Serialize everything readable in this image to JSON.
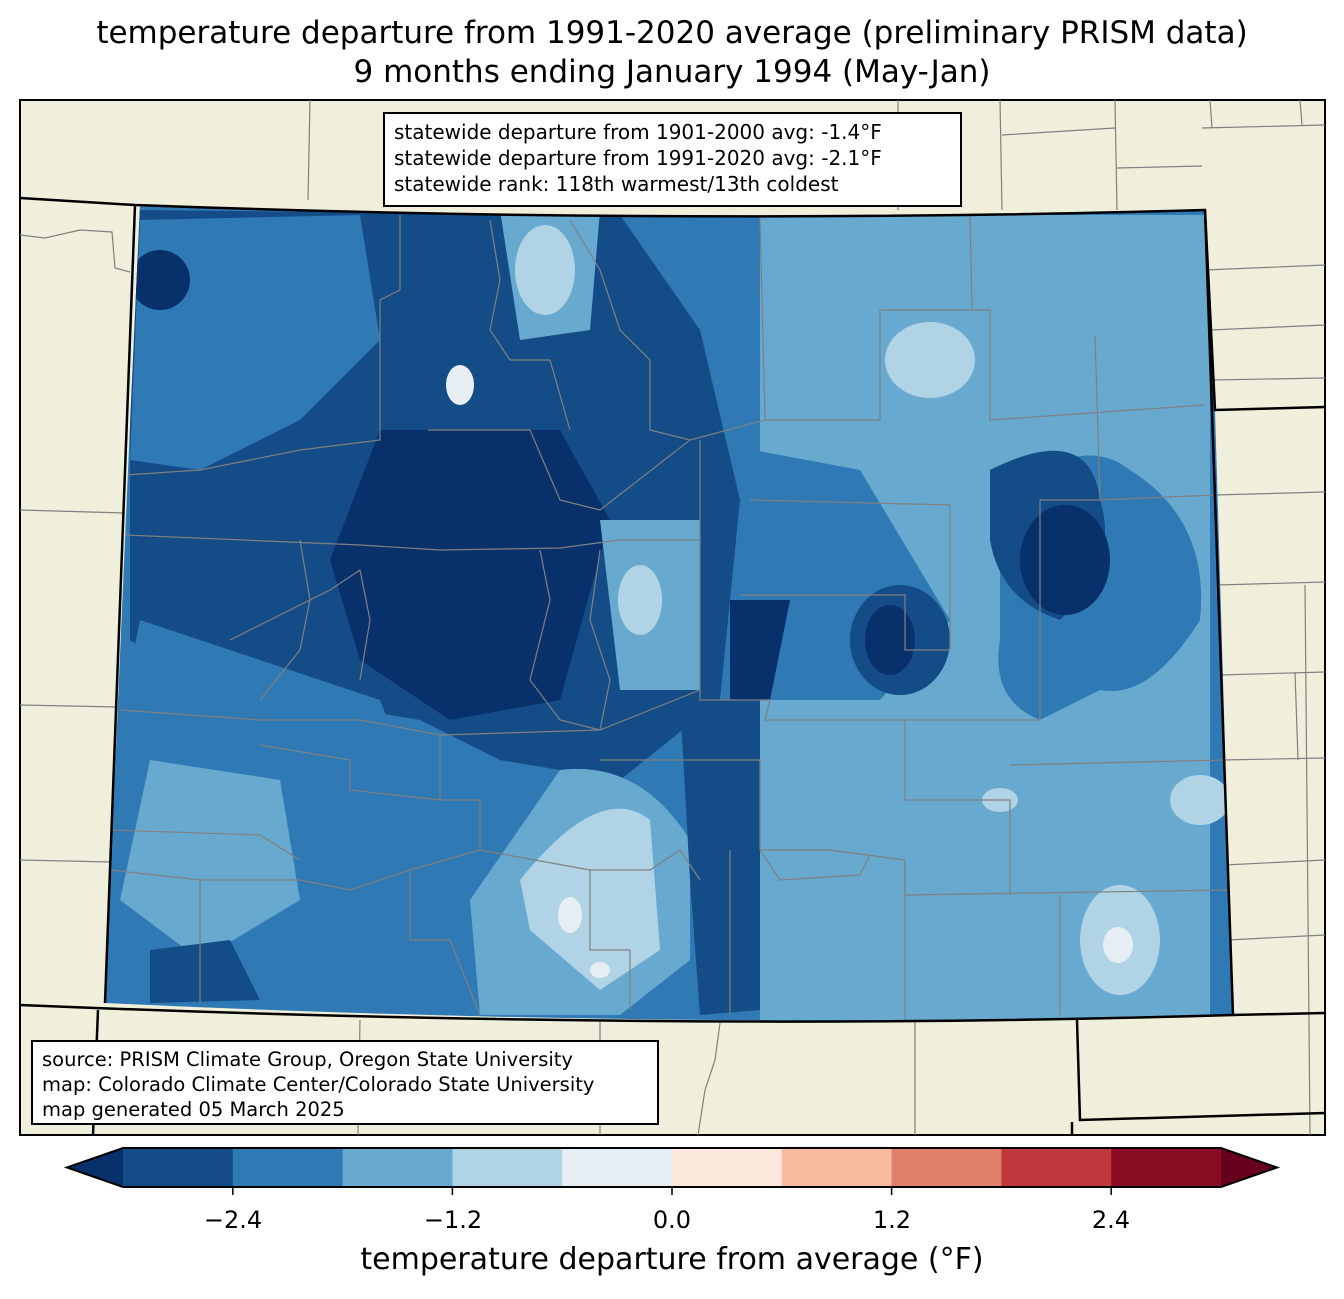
{
  "title": {
    "line1": "temperature departure from 1991-2020 average (preliminary PRISM data)",
    "line2": "9 months ending January 1994 (May-Jan)"
  },
  "stats_box": {
    "line1": "statewide departure from 1901-2000 avg: -1.4°F",
    "line2": "statewide departure from 1991-2020 avg: -2.1°F",
    "line3": "statewide rank: 118th warmest/13th coldest"
  },
  "source_box": {
    "line1": "source: PRISM Climate Group, Oregon State University",
    "line2": "map: Colorado Climate Center/Colorado State University",
    "line3": "map generated 05 March 2025"
  },
  "colorbar": {
    "label": "temperature departure from average (°F)",
    "ticks": [
      "−2.4",
      "−1.2",
      "0.0",
      "1.2",
      "2.4"
    ],
    "boundaries": [
      -3.0,
      -2.4,
      -1.8,
      -1.2,
      -0.6,
      0.0,
      0.6,
      1.2,
      1.8,
      2.4,
      3.0
    ],
    "colors": [
      "#08306b",
      "#144c87",
      "#2f79b5",
      "#67a9cf",
      "#b0d3e6",
      "#e6eef4",
      "#fbe7dc",
      "#f8bba0",
      "#e1806a",
      "#c2393d",
      "#890b24",
      "#67001f"
    ]
  },
  "colors": {
    "land": "#efefdb",
    "county_line": "#808080",
    "state_line": "#000000"
  }
}
